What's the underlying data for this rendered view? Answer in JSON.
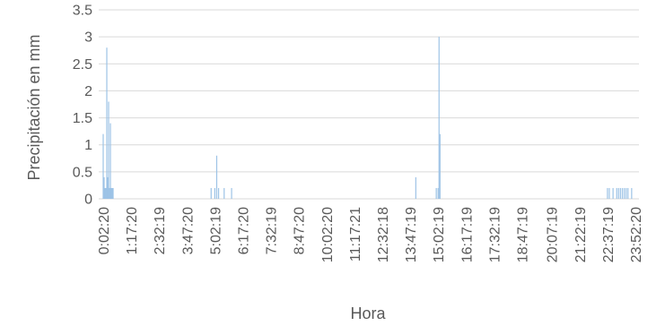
{
  "chart_data": {
    "type": "bar",
    "xlabel": "Hora",
    "ylabel": "Precipitación en mm",
    "ylim": [
      0,
      3.5
    ],
    "yticks": [
      "0",
      "0.5",
      "1",
      "1.5",
      "2",
      "2.5",
      "3",
      "3.5"
    ],
    "x_tick_labels": [
      "0:02:20",
      "1:17:20",
      "2:32:19",
      "3:47:20",
      "5:02:19",
      "6:17:20",
      "7:32:19",
      "8:47:20",
      "10:02:20",
      "11:17:21",
      "12:32:18",
      "13:47:19",
      "15:02:19",
      "16:17:19",
      "17:32:19",
      "18:47:19",
      "20:07:19",
      "21:22:19",
      "22:37:19",
      "23:52:20"
    ],
    "grid": "horizontal",
    "bar_color": "#9dc3e6",
    "series": [
      {
        "x": [
          "0:02:20",
          "0:04:45",
          "0:07:10",
          "0:09:35",
          "0:12:00",
          "0:14:25",
          "0:16:50",
          "0:19:15",
          "0:21:40",
          "0:24:05",
          "0:26:30",
          "0:28:55",
          "4:52:20",
          "5:02:19",
          "5:07:20",
          "5:12:20",
          "5:27:20",
          "5:47:20",
          "14:02:19",
          "14:57:19",
          "15:02:19",
          "15:04:45",
          "15:07:20",
          "22:37:19",
          "22:42:19",
          "22:52:19",
          "23:02:19",
          "23:07:19",
          "23:12:19",
          "23:17:19",
          "23:22:19",
          "23:27:19",
          "23:32:19",
          "23:42:19"
        ],
        "values": [
          1.2,
          0.4,
          0.2,
          0.2,
          2.8,
          0.4,
          1.8,
          0.2,
          1.4,
          0.2,
          0.2,
          0.2,
          0.2,
          0.2,
          0.8,
          0.2,
          0.2,
          0.2,
          0.4,
          0.2,
          0.2,
          3.0,
          1.2,
          0.2,
          0.2,
          0.2,
          0.2,
          0.2,
          0.2,
          0.2,
          0.2,
          0.2,
          0.2,
          0.2
        ]
      }
    ]
  }
}
